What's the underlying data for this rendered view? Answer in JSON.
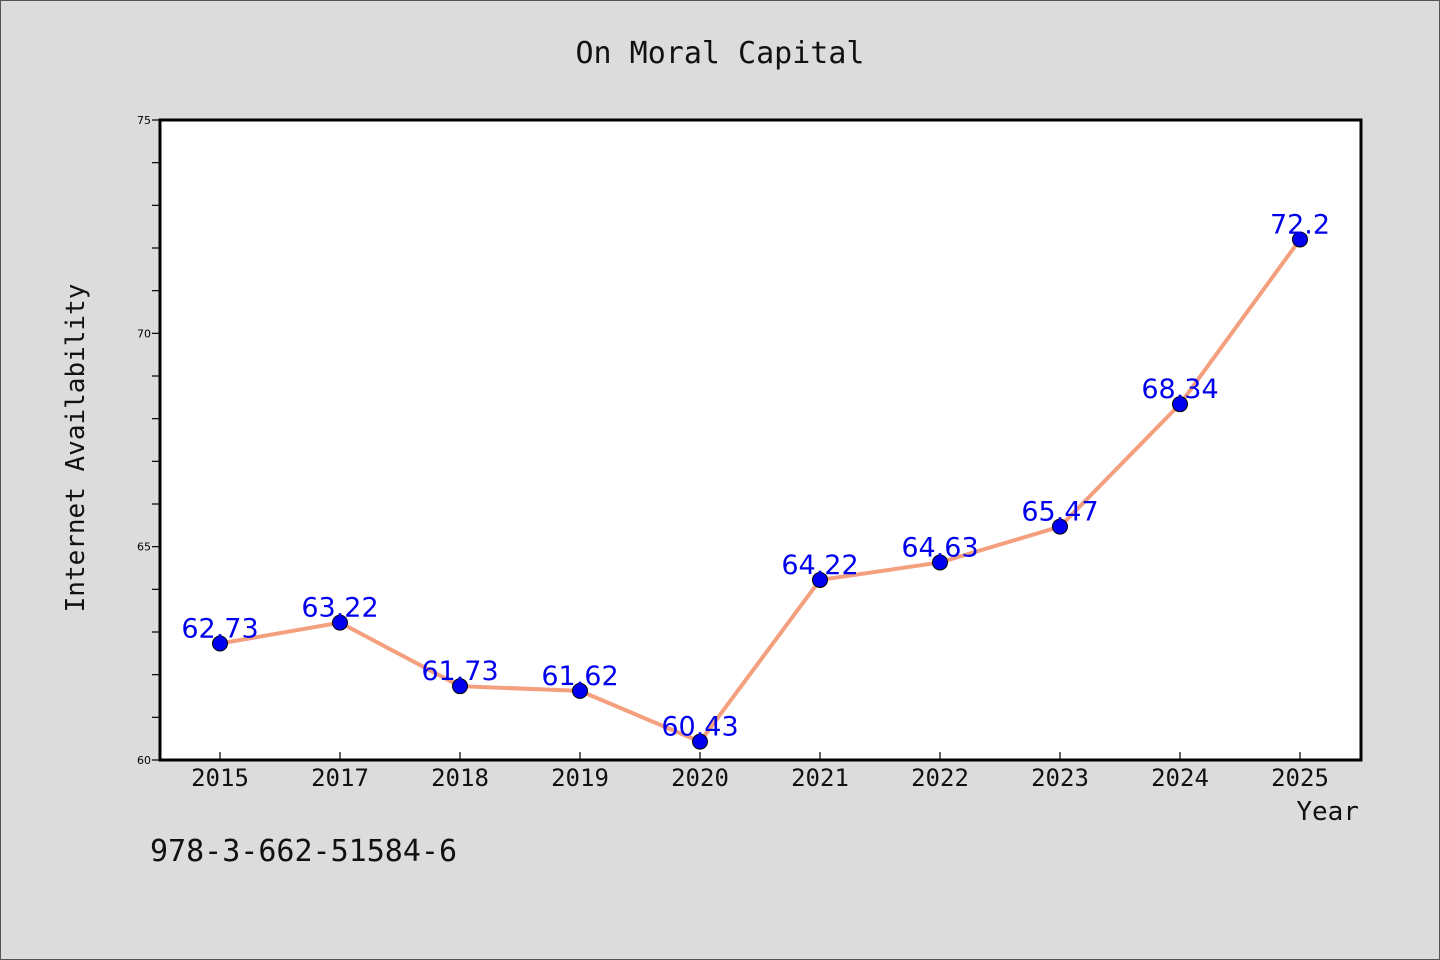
{
  "chart_data": {
    "type": "line",
    "title": "On Moral Capital",
    "xlabel": "Year",
    "ylabel": "Internet Availability",
    "categories": [
      "2015",
      "2017",
      "2018",
      "2019",
      "2020",
      "2021",
      "2022",
      "2023",
      "2024",
      "2025"
    ],
    "series": [
      {
        "values": [
          62.73,
          63.22,
          61.73,
          61.62,
          60.43,
          64.22,
          64.63,
          65.47,
          68.34,
          72.2
        ],
        "labels": [
          "62.73",
          "63.22",
          "61.73",
          "61.62",
          "60.43",
          "64.22",
          "64.63",
          "65.47",
          "68.34",
          "72.2"
        ]
      }
    ],
    "ylim": [
      60,
      75
    ],
    "yticks": [
      "60",
      "65",
      "70",
      "75"
    ],
    "grid": false,
    "legend": "none",
    "colors": {
      "line": "#f4a07e",
      "marker": "#0000ee",
      "data_label": "#0000ee",
      "background": "#dcdcdc",
      "plot_area": "#ffffff"
    }
  },
  "footer": {
    "isbn": "978-3-662-51584-6"
  }
}
